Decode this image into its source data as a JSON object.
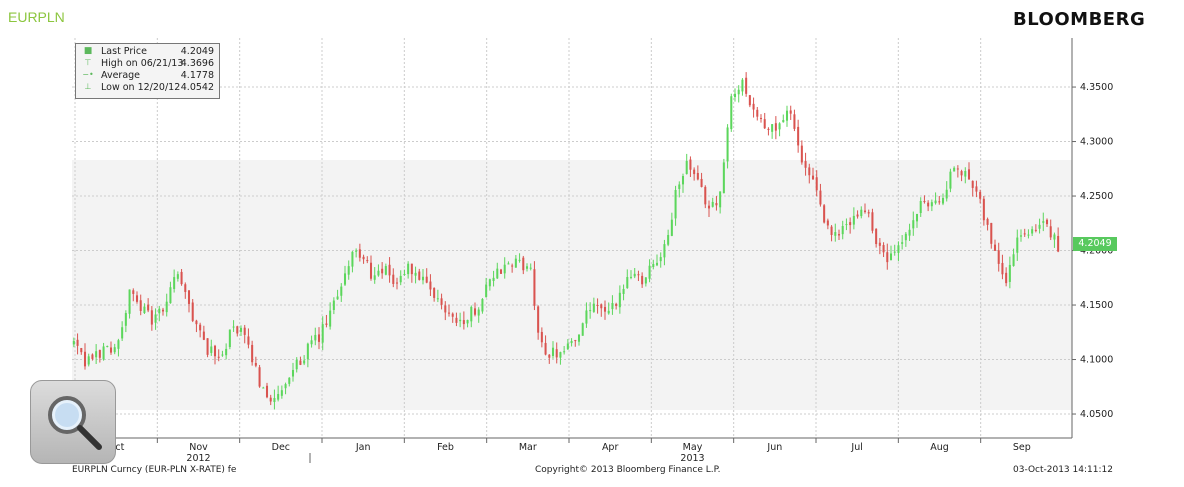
{
  "header": {
    "ticker": "EURPLN",
    "brand": "BLOOMBERG"
  },
  "legend": {
    "rows": [
      {
        "label": "Last Price",
        "value": "4.2049",
        "icon": "square-icon"
      },
      {
        "label": "High on 06/21/13",
        "value": "4.3696",
        "icon": "high-marker-icon"
      },
      {
        "label": "Average",
        "value": "4.1778",
        "icon": "average-marker-icon"
      },
      {
        "label": "Low on 12/20/12",
        "value": "4.0542",
        "icon": "low-marker-icon"
      }
    ]
  },
  "last_price_tag": "4.2049",
  "footer": {
    "left": "EURPLN Curncy (EUR-PLN X-RATE) fe",
    "center": "Copyright© 2013 Bloomberg Finance L.P.",
    "right": "03-Oct-2013 14:11:12"
  },
  "colors": {
    "up": "#5cd65c",
    "down": "#d9534f",
    "ticker": "#8cc63f",
    "band": "#f2f2f2"
  },
  "chart_data": {
    "type": "candlestick",
    "series_name": "EURPLN",
    "y_ticks": [
      "4.0500",
      "4.1000",
      "4.1500",
      "4.2000",
      "4.2500",
      "4.3000",
      "4.3500"
    ],
    "ylim": [
      4.028,
      4.395
    ],
    "x_ticks": [
      {
        "label": "Oct",
        "pos": 0
      },
      {
        "label": "Nov",
        "pos": 22
      },
      {
        "label": "Dec",
        "pos": 44
      },
      {
        "label": "Jan",
        "pos": 65
      },
      {
        "label": "Feb",
        "pos": 88
      },
      {
        "label": "Mar",
        "pos": 110
      },
      {
        "label": "Apr",
        "pos": 132
      },
      {
        "label": "May",
        "pos": 154
      },
      {
        "label": "Jun",
        "pos": 176
      },
      {
        "label": "Jul",
        "pos": 198
      },
      {
        "label": "Aug",
        "pos": 220
      },
      {
        "label": "Sep",
        "pos": 242
      }
    ],
    "x_year_labels": [
      {
        "label": "2012",
        "pos": 22
      },
      {
        "label": "2013",
        "pos": 154
      }
    ],
    "x_count": 266,
    "close_path": [
      [
        0,
        4.115
      ],
      [
        3,
        4.095
      ],
      [
        6,
        4.105
      ],
      [
        9,
        4.11
      ],
      [
        12,
        4.115
      ],
      [
        15,
        4.16
      ],
      [
        18,
        4.15
      ],
      [
        21,
        4.135
      ],
      [
        25,
        4.15
      ],
      [
        27,
        4.18
      ],
      [
        30,
        4.16
      ],
      [
        33,
        4.13
      ],
      [
        36,
        4.11
      ],
      [
        39,
        4.1
      ],
      [
        43,
        4.13
      ],
      [
        46,
        4.12
      ],
      [
        50,
        4.08
      ],
      [
        54,
        4.06
      ],
      [
        57,
        4.075
      ],
      [
        60,
        4.095
      ],
      [
        63,
        4.11
      ],
      [
        66,
        4.12
      ],
      [
        69,
        4.14
      ],
      [
        72,
        4.17
      ],
      [
        75,
        4.2
      ],
      [
        78,
        4.19
      ],
      [
        81,
        4.175
      ],
      [
        84,
        4.18
      ],
      [
        87,
        4.17
      ],
      [
        90,
        4.185
      ],
      [
        93,
        4.175
      ],
      [
        96,
        4.16
      ],
      [
        99,
        4.15
      ],
      [
        102,
        4.14
      ],
      [
        105,
        4.135
      ],
      [
        109,
        4.15
      ],
      [
        111,
        4.17
      ],
      [
        114,
        4.18
      ],
      [
        117,
        4.185
      ],
      [
        120,
        4.19
      ],
      [
        123,
        4.18
      ],
      [
        125,
        4.12
      ],
      [
        128,
        4.105
      ],
      [
        132,
        4.11
      ],
      [
        135,
        4.12
      ],
      [
        138,
        4.14
      ],
      [
        141,
        4.15
      ],
      [
        144,
        4.14
      ],
      [
        147,
        4.16
      ],
      [
        150,
        4.18
      ],
      [
        153,
        4.175
      ],
      [
        156,
        4.19
      ],
      [
        159,
        4.2
      ],
      [
        162,
        4.25
      ],
      [
        165,
        4.28
      ],
      [
        168,
        4.26
      ],
      [
        171,
        4.24
      ],
      [
        174,
        4.25
      ],
      [
        177,
        4.34
      ],
      [
        180,
        4.355
      ],
      [
        183,
        4.33
      ],
      [
        186,
        4.31
      ],
      [
        190,
        4.315
      ],
      [
        193,
        4.33
      ],
      [
        196,
        4.28
      ],
      [
        199,
        4.26
      ],
      [
        201,
        4.24
      ],
      [
        204,
        4.21
      ],
      [
        207,
        4.22
      ],
      [
        210,
        4.23
      ],
      [
        213,
        4.24
      ],
      [
        216,
        4.21
      ],
      [
        219,
        4.19
      ],
      [
        222,
        4.2
      ],
      [
        225,
        4.22
      ],
      [
        228,
        4.24
      ],
      [
        231,
        4.245
      ],
      [
        234,
        4.25
      ],
      [
        237,
        4.275
      ],
      [
        240,
        4.27
      ],
      [
        243,
        4.26
      ],
      [
        246,
        4.22
      ],
      [
        249,
        4.19
      ],
      [
        251,
        4.175
      ],
      [
        254,
        4.21
      ],
      [
        257,
        4.22
      ],
      [
        260,
        4.225
      ],
      [
        263,
        4.215
      ],
      [
        265,
        4.205
      ]
    ]
  }
}
